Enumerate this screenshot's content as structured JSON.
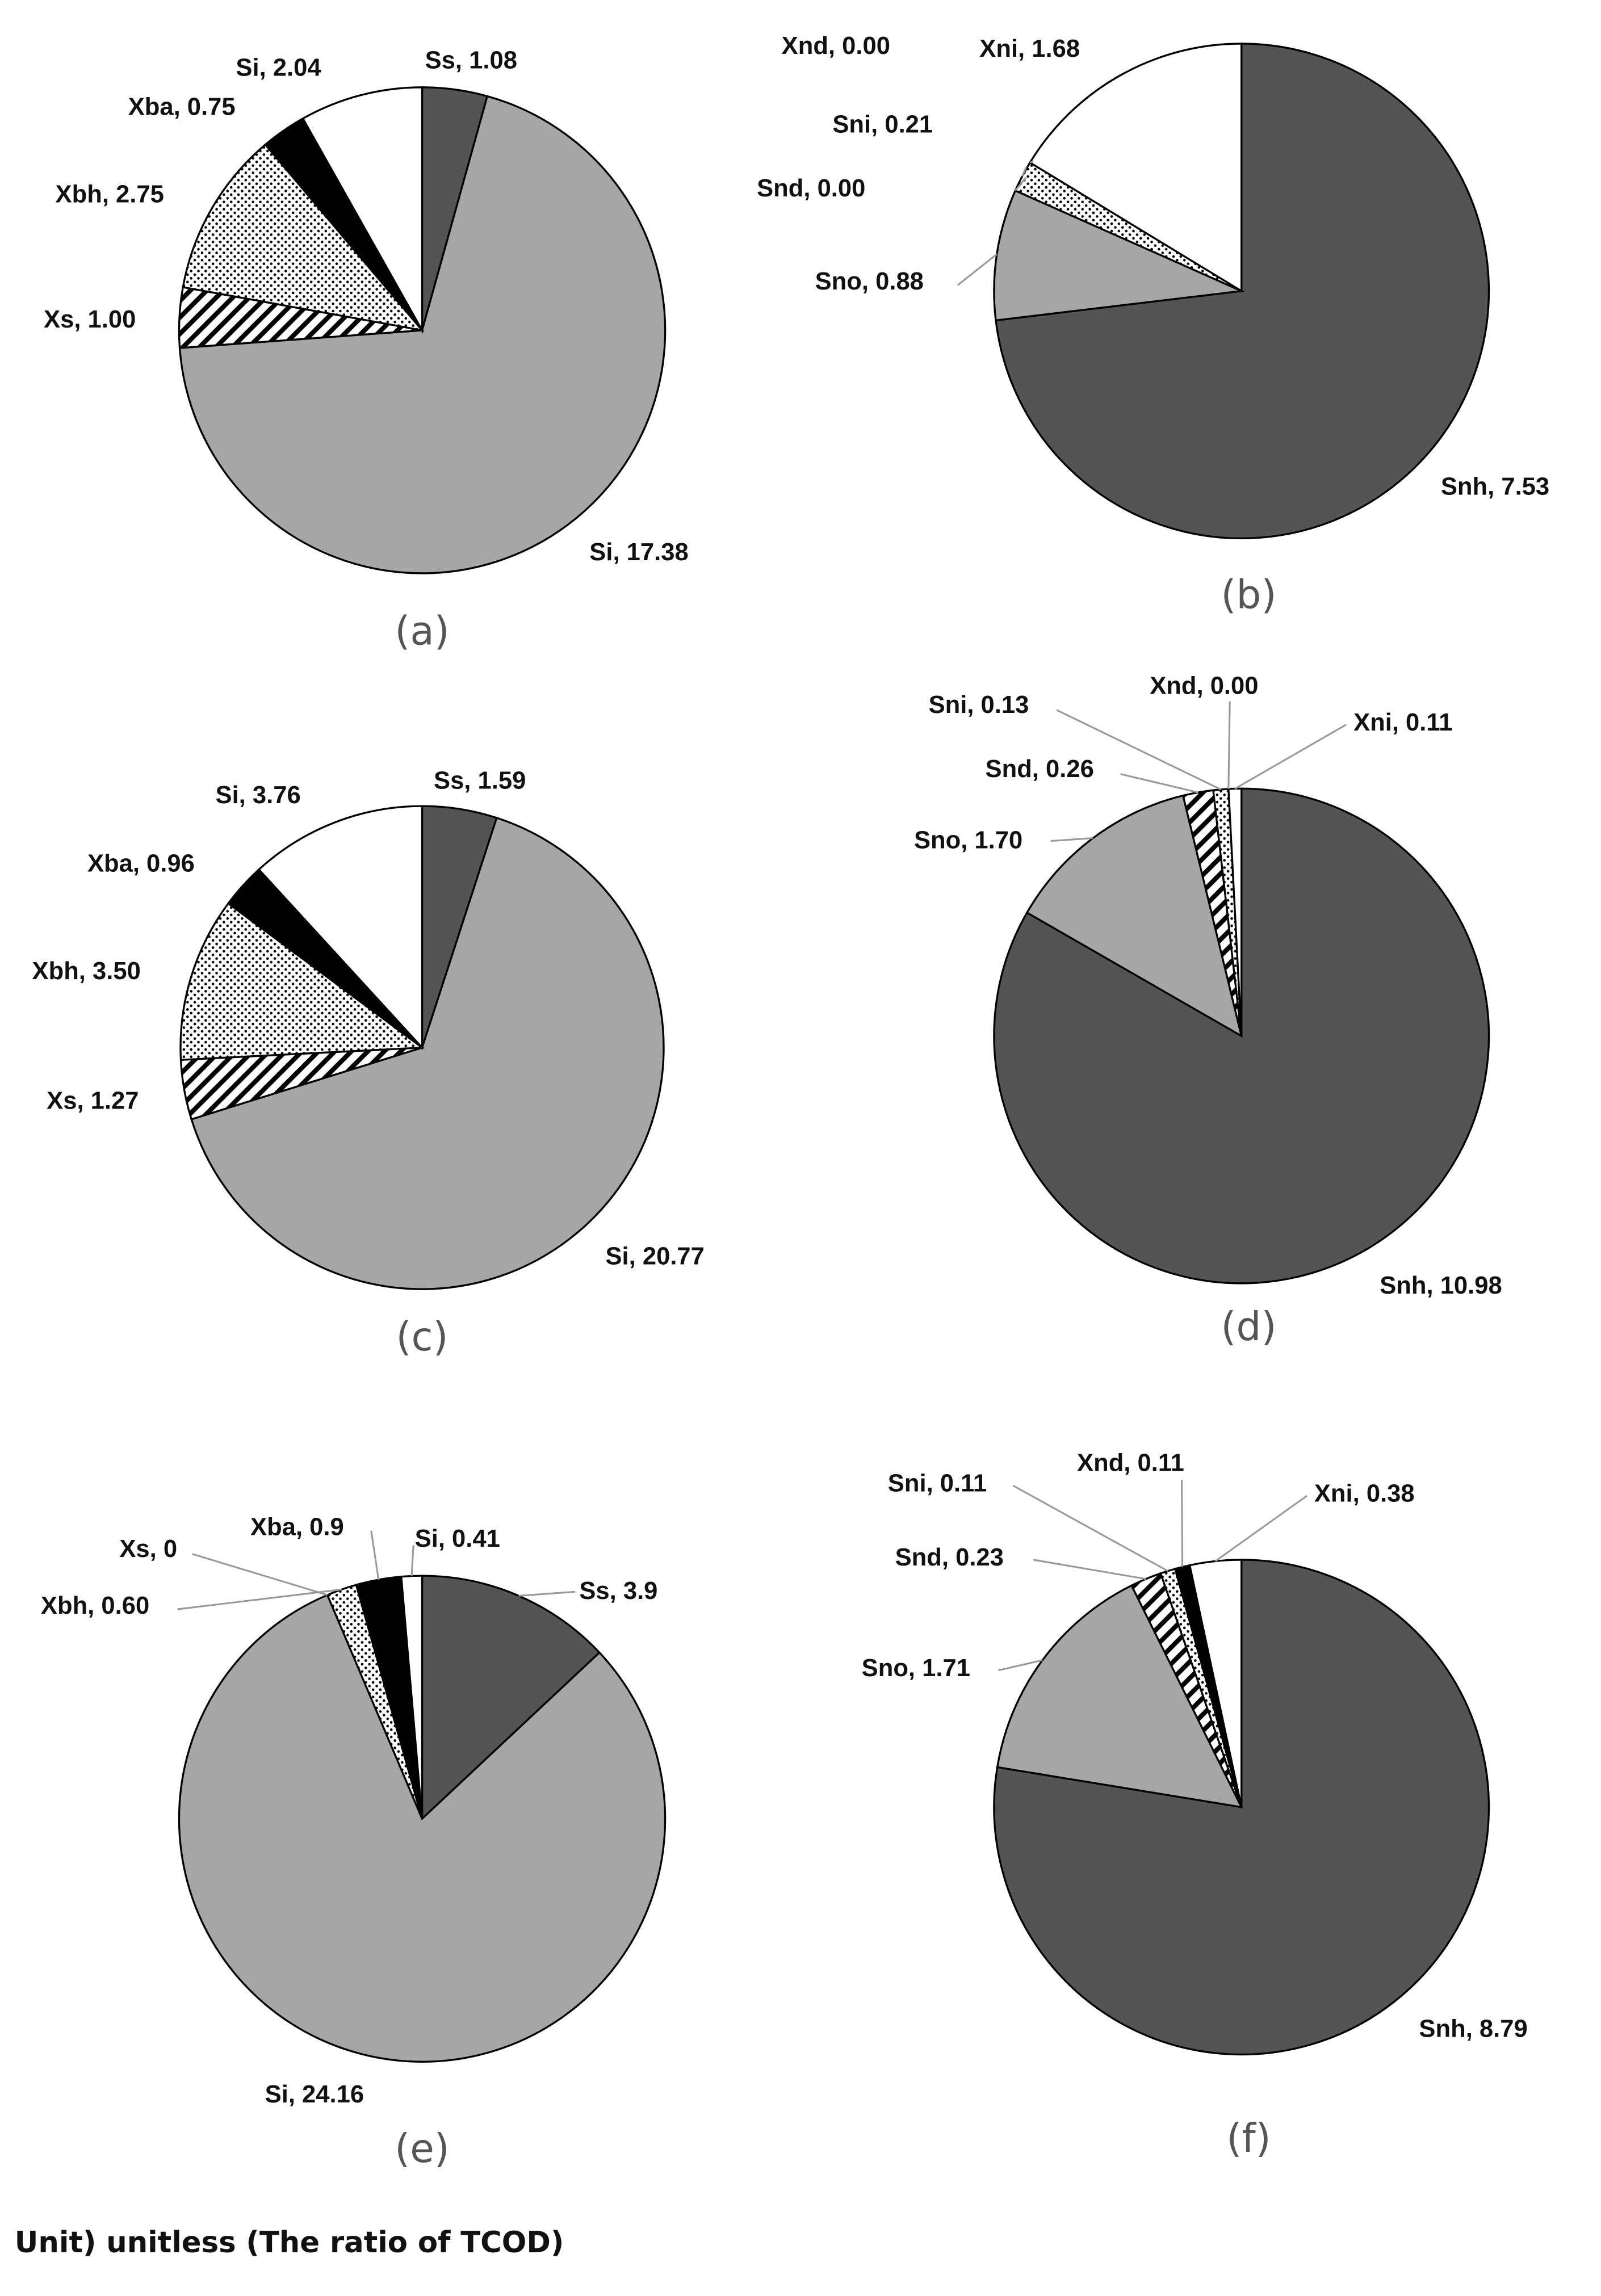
{
  "unit_note": "Unit) unitless (The ratio of TCOD)",
  "chart_data": [
    {
      "type": "pie",
      "caption": "(a)",
      "start": "top",
      "direction": "clockwise",
      "slices": [
        {
          "name": "Ss",
          "value": 1.08,
          "label": "Ss, 1.08",
          "fill": "dark"
        },
        {
          "name": "Si",
          "value": 17.38,
          "label": "Si, 17.38",
          "fill": "gray"
        },
        {
          "name": "Xs",
          "value": 1.0,
          "label": "Xs, 1.00",
          "fill": "hatch"
        },
        {
          "name": "Xbh",
          "value": 2.75,
          "label": "Xbh, 2.75",
          "fill": "dots"
        },
        {
          "name": "Xba",
          "value": 0.75,
          "label": "Xba, 0.75",
          "fill": "black"
        },
        {
          "name": "Si",
          "value": 2.04,
          "label": "Si, 2.04",
          "fill": "white"
        }
      ]
    },
    {
      "type": "pie",
      "caption": "(b)",
      "start": "top",
      "direction": "clockwise",
      "slices": [
        {
          "name": "Snh",
          "value": 7.53,
          "label": "Snh, 7.53",
          "fill": "dark"
        },
        {
          "name": "Sno",
          "value": 0.88,
          "label": "Sno, 0.88",
          "fill": "gray"
        },
        {
          "name": "Snd",
          "value": 0.0,
          "label": "Snd, 0.00",
          "fill": "hatch"
        },
        {
          "name": "Sni",
          "value": 0.21,
          "label": "Sni, 0.21",
          "fill": "dots"
        },
        {
          "name": "Xnd",
          "value": 0.0,
          "label": "Xnd, 0.00",
          "fill": "black"
        },
        {
          "name": "Xni",
          "value": 1.68,
          "label": "Xni, 1.68",
          "fill": "white"
        }
      ]
    },
    {
      "type": "pie",
      "caption": "(c)",
      "start": "top",
      "direction": "clockwise",
      "slices": [
        {
          "name": "Ss",
          "value": 1.59,
          "label": "Ss, 1.59",
          "fill": "dark"
        },
        {
          "name": "Si",
          "value": 20.77,
          "label": "Si, 20.77",
          "fill": "gray"
        },
        {
          "name": "Xs",
          "value": 1.27,
          "label": "Xs, 1.27",
          "fill": "hatch"
        },
        {
          "name": "Xbh",
          "value": 3.5,
          "label": "Xbh, 3.50",
          "fill": "dots"
        },
        {
          "name": "Xba",
          "value": 0.96,
          "label": "Xba, 0.96",
          "fill": "black"
        },
        {
          "name": "Si",
          "value": 3.76,
          "label": "Si, 3.76",
          "fill": "white"
        }
      ]
    },
    {
      "type": "pie",
      "caption": "(d)",
      "start": "top",
      "direction": "clockwise",
      "slices": [
        {
          "name": "Snh",
          "value": 10.98,
          "label": "Snh, 10.98",
          "fill": "dark"
        },
        {
          "name": "Sno",
          "value": 1.7,
          "label": "Sno, 1.70",
          "fill": "gray"
        },
        {
          "name": "Snd",
          "value": 0.26,
          "label": "Snd, 0.26",
          "fill": "hatch"
        },
        {
          "name": "Sni",
          "value": 0.13,
          "label": "Sni, 0.13",
          "fill": "dots"
        },
        {
          "name": "Xnd",
          "value": 0.0,
          "label": "Xnd, 0.00",
          "fill": "black"
        },
        {
          "name": "Xni",
          "value": 0.11,
          "label": "Xni, 0.11",
          "fill": "white"
        }
      ]
    },
    {
      "type": "pie",
      "caption": "(e)",
      "start": "top",
      "direction": "clockwise",
      "slices": [
        {
          "name": "Ss",
          "value": 3.9,
          "label": "Ss, 3.9",
          "fill": "dark"
        },
        {
          "name": "Si",
          "value": 24.16,
          "label": "Si, 24.16",
          "fill": "gray"
        },
        {
          "name": "Xs",
          "value": 0,
          "label": "Xs, 0",
          "fill": "hatch"
        },
        {
          "name": "Xbh",
          "value": 0.6,
          "label": "Xbh, 0.60",
          "fill": "dots"
        },
        {
          "name": "Xba",
          "value": 0.9,
          "label": "Xba, 0.9",
          "fill": "black"
        },
        {
          "name": "Si",
          "value": 0.41,
          "label": "Si, 0.41",
          "fill": "white"
        }
      ]
    },
    {
      "type": "pie",
      "caption": "(f)",
      "start": "top",
      "direction": "clockwise",
      "slices": [
        {
          "name": "Snh",
          "value": 8.79,
          "label": "Snh, 8.79",
          "fill": "dark"
        },
        {
          "name": "Sno",
          "value": 1.71,
          "label": "Sno, 1.71",
          "fill": "gray"
        },
        {
          "name": "Snd",
          "value": 0.23,
          "label": "Snd, 0.23",
          "fill": "hatch"
        },
        {
          "name": "Sni",
          "value": 0.11,
          "label": "Sni, 0.11",
          "fill": "dots"
        },
        {
          "name": "Xnd",
          "value": 0.11,
          "label": "Xnd, 0.11",
          "fill": "black"
        },
        {
          "name": "Xni",
          "value": 0.38,
          "label": "Xni, 0.38",
          "fill": "white"
        }
      ]
    }
  ],
  "colors": {
    "dark": "#545454",
    "gray": "#a6a6a6",
    "black": "#000000",
    "white": "#ffffff",
    "outline": "#000000"
  }
}
